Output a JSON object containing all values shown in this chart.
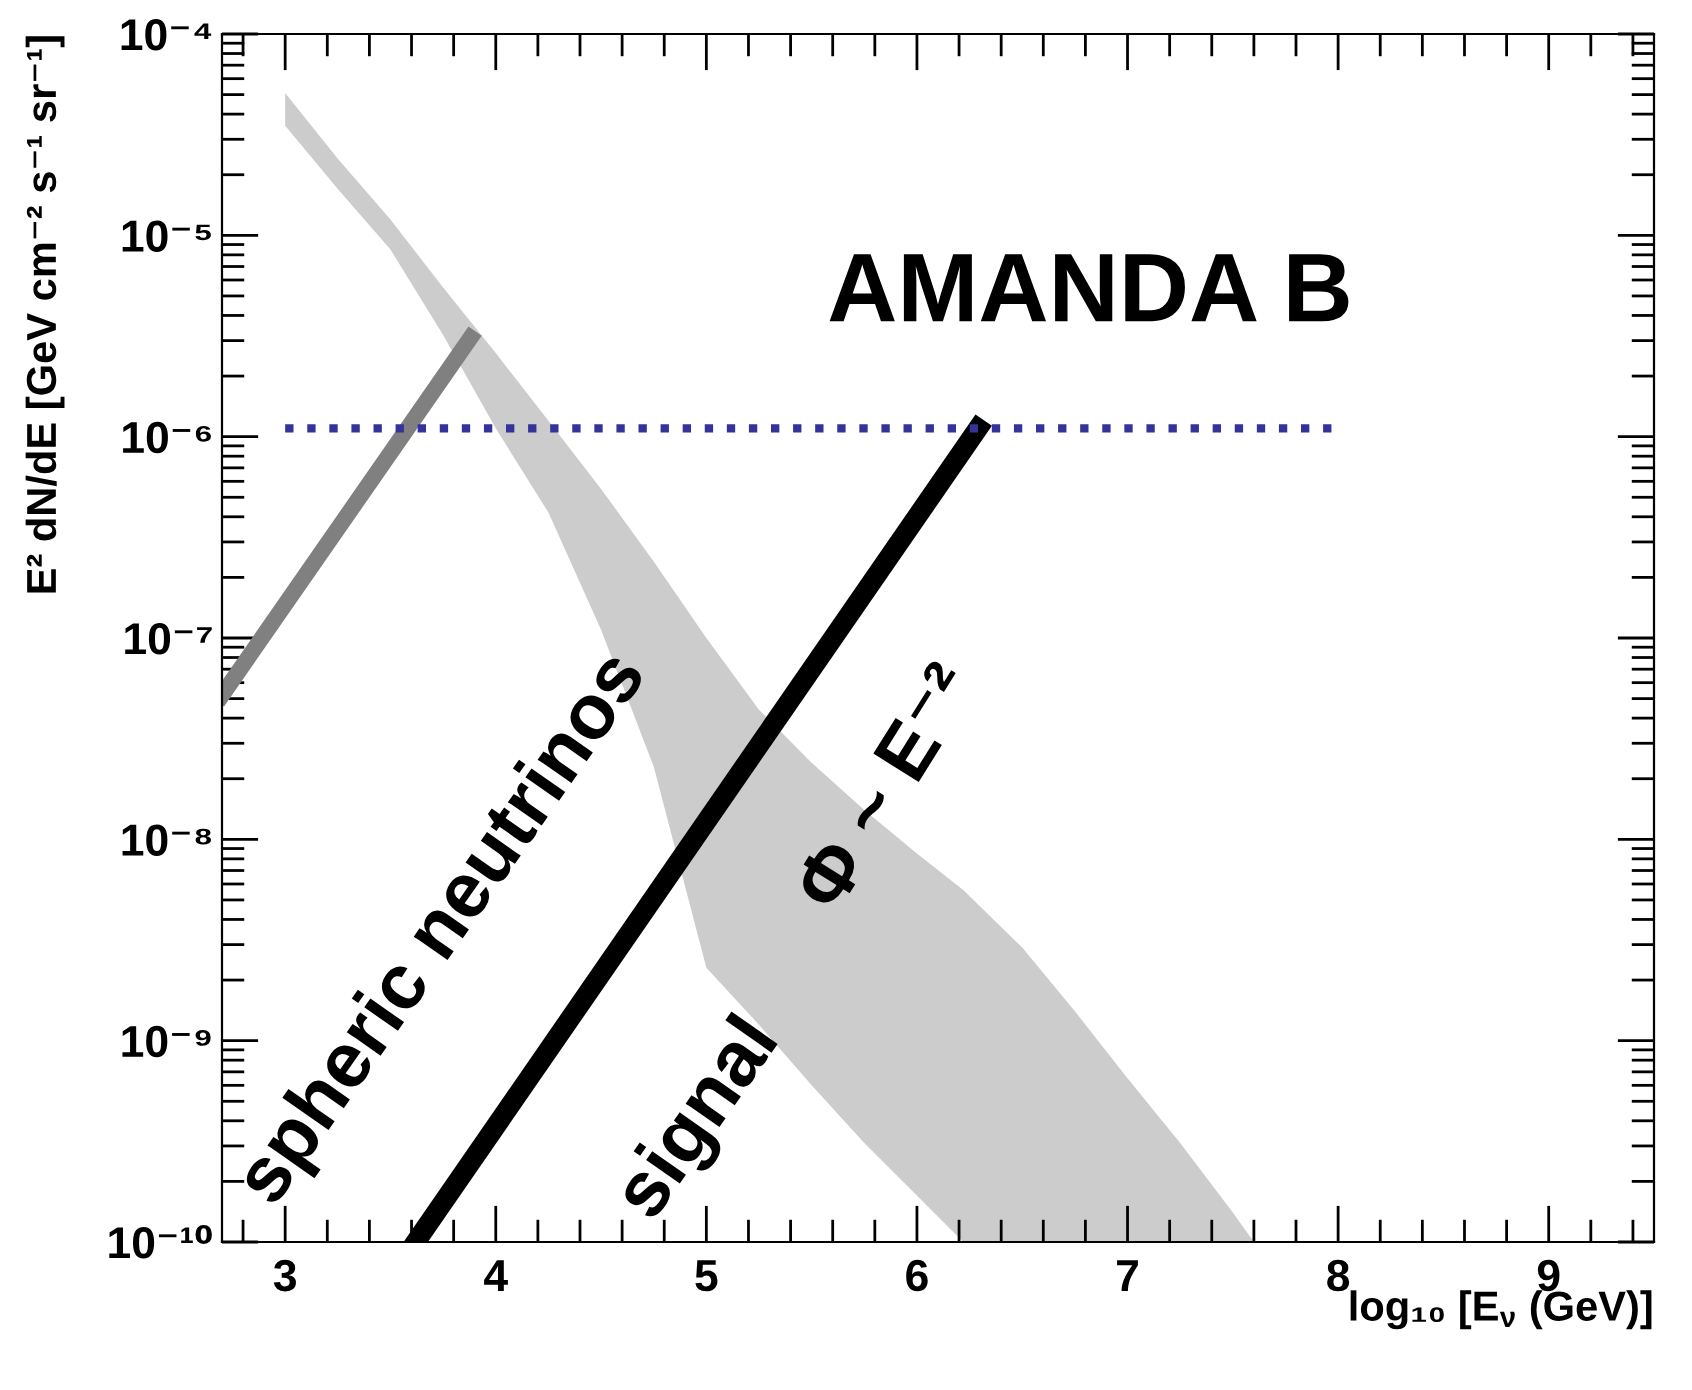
{
  "chart_data": {
    "type": "line",
    "xlabel": "log₁₀ [E$_{ν}$ (GeV)]",
    "ylabel": "E² dN/dE [GeV cm⁻² s⁻¹ sr⁻¹]",
    "log": "y",
    "xlim": [
      2.7,
      9.5
    ],
    "xticks": [
      {
        "value": 2.8,
        "label": null
      },
      3,
      {
        "value": 3.2,
        "label": null
      },
      {
        "value": 3.4,
        "label": null
      },
      {
        "value": 3.6,
        "label": null
      },
      {
        "value": 3.8,
        "label": null
      },
      4,
      {
        "value": 4.2,
        "label": null
      },
      {
        "value": 4.4,
        "label": null
      },
      {
        "value": 4.6,
        "label": null
      },
      {
        "value": 4.8,
        "label": null
      },
      5,
      {
        "value": 5.2,
        "label": null
      },
      {
        "value": 5.4,
        "label": null
      },
      {
        "value": 5.6,
        "label": null
      },
      {
        "value": 5.8,
        "label": null
      },
      6,
      {
        "value": 6.2,
        "label": null
      },
      {
        "value": 6.4,
        "label": null
      },
      {
        "value": 6.6,
        "label": null
      },
      {
        "value": 6.8,
        "label": null
      },
      7,
      {
        "value": 7.2,
        "label": null
      },
      {
        "value": 7.4,
        "label": null
      },
      {
        "value": 7.6,
        "label": null
      },
      {
        "value": 7.8,
        "label": null
      },
      8,
      {
        "value": 8.2,
        "label": null
      },
      {
        "value": 8.4,
        "label": null
      },
      {
        "value": 8.6,
        "label": null
      },
      {
        "value": 8.8,
        "label": null
      },
      9,
      {
        "value": 9.2,
        "label": null
      },
      {
        "value": 9.4,
        "label": null
      }
    ],
    "ylim": [
      1e-10,
      0.0001
    ],
    "yticks": [
      {
        "value": 1e-10,
        "label": "10⁻¹⁰"
      },
      {
        "value": 2e-10,
        "label": null
      },
      {
        "value": 3e-10,
        "label": null
      },
      {
        "value": 4e-10,
        "label": null
      },
      {
        "value": 5e-10,
        "label": null
      },
      {
        "value": 6e-10,
        "label": null
      },
      {
        "value": 7e-10,
        "label": null
      },
      {
        "value": 8e-10,
        "label": null
      },
      {
        "value": 9e-10,
        "label": null
      },
      {
        "value": 1e-09,
        "label": "10⁻⁹"
      },
      {
        "value": 2e-09,
        "label": null
      },
      {
        "value": 3e-09,
        "label": null
      },
      {
        "value": 4e-09,
        "label": null
      },
      {
        "value": 5e-09,
        "label": null
      },
      {
        "value": 6e-09,
        "label": null
      },
      {
        "value": 7e-09,
        "label": null
      },
      {
        "value": 8e-09,
        "label": null
      },
      {
        "value": 9e-09,
        "label": null
      },
      {
        "value": 1e-08,
        "label": "10⁻⁸"
      },
      {
        "value": 2e-08,
        "label": null
      },
      {
        "value": 3e-08,
        "label": null
      },
      {
        "value": 4e-08,
        "label": null
      },
      {
        "value": 5e-08,
        "label": null
      },
      {
        "value": 6e-08,
        "label": null
      },
      {
        "value": 7e-08,
        "label": null
      },
      {
        "value": 8e-08,
        "label": null
      },
      {
        "value": 9e-08,
        "label": null
      },
      {
        "value": 1e-07,
        "label": "10⁻⁷"
      },
      {
        "value": 2e-07,
        "label": null
      },
      {
        "value": 3e-07,
        "label": null
      },
      {
        "value": 4e-07,
        "label": null
      },
      {
        "value": 5e-07,
        "label": null
      },
      {
        "value": 6e-07,
        "label": null
      },
      {
        "value": 7e-07,
        "label": null
      },
      {
        "value": 8e-07,
        "label": null
      },
      {
        "value": 9e-07,
        "label": null
      },
      {
        "value": 1e-06,
        "label": "10⁻⁶"
      },
      {
        "value": 2e-06,
        "label": null
      },
      {
        "value": 3e-06,
        "label": null
      },
      {
        "value": 4e-06,
        "label": null
      },
      {
        "value": 5e-06,
        "label": null
      },
      {
        "value": 6e-06,
        "label": null
      },
      {
        "value": 7e-06,
        "label": null
      },
      {
        "value": 8e-06,
        "label": null
      },
      {
        "value": 9e-06,
        "label": null
      },
      {
        "value": 1e-05,
        "label": "10⁻⁵"
      },
      {
        "value": 2e-05,
        "label": null
      },
      {
        "value": 3e-05,
        "label": null
      },
      {
        "value": 4e-05,
        "label": null
      },
      {
        "value": 5e-05,
        "label": null
      },
      {
        "value": 6e-05,
        "label": null
      },
      {
        "value": 7e-05,
        "label": null
      },
      {
        "value": 8e-05,
        "label": null
      },
      {
        "value": 9e-05,
        "label": null
      },
      {
        "value": 0.0001,
        "label": "10⁻⁴"
      }
    ],
    "series": [
      {
        "color": "#cccccc",
        "x": [
          3.0,
          3.25,
          3.5,
          3.75,
          4.0,
          4.25,
          4.5,
          4.75,
          5.0,
          5.25,
          5.5,
          5.75,
          6.0,
          6.22,
          6.5,
          6.75,
          7.0,
          7.25,
          7.5,
          7.6
        ],
        "values": [
          null,
          null,
          null,
          null,
          null,
          null,
          null,
          null,
          null,
          null,
          null,
          null,
          null,
          null,
          null,
          null,
          null,
          null,
          null,
          null
        ],
        "lower": [
          3.5e-05,
          1.7e-05,
          8.5e-06,
          3.2e-06,
          1.1e-06,
          4.2e-07,
          1.1e-07,
          2.3e-08,
          2.3e-09,
          1.2e-09,
          6e-10,
          3.1e-10,
          1.7e-10,
          1e-10,
          1e-10,
          1e-10,
          1e-10,
          1e-10,
          1e-10,
          1e-10
        ],
        "upper": [
          5.1e-05,
          2.4e-05,
          1.2e-05,
          5.5e-06,
          2.6e-06,
          1.2e-06,
          5.5e-07,
          2.4e-07,
          1e-07,
          4.4e-08,
          2.4e-08,
          1.4e-08,
          8.5e-09,
          5.6e-09,
          2.9e-09,
          1.4e-09,
          6.5e-10,
          3.1e-10,
          1.4e-10,
          1e-10
        ]
      },
      {
        "type": "line",
        "color": "#808080",
        "x": [
          2.7,
          3.88
        ],
        "values": [
          5.2e-08,
          3.1e-06
        ]
      },
      {
        "type": "line",
        "color": "#000000",
        "x": [
          3.62,
          6.29
        ],
        "values": [
          1e-10,
          1.1e-06
        ]
      },
      {
        "type": "line",
        "color": "#333399",
        "line_style": "dotted",
        "x": [
          3.0,
          8.0
        ],
        "values": [
          1.1e-06,
          1.1e-06
        ]
      }
    ],
    "annotations": [
      "AMANDA B",
      "spheric neutrinos",
      "signal",
      "Φ ~ E⁻²"
    ]
  }
}
